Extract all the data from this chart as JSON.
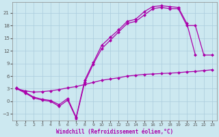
{
  "xlabel": "Windchill (Refroidissement éolien,°C)",
  "bg_color": "#cce8f0",
  "grid_color": "#aaccdd",
  "line_color": "#aa00aa",
  "xlim": [
    -0.5,
    23.5
  ],
  "ylim": [
    -4.5,
    23.5
  ],
  "yticks": [
    -3,
    0,
    3,
    6,
    9,
    12,
    15,
    18,
    21
  ],
  "xticks": [
    0,
    1,
    2,
    3,
    4,
    5,
    6,
    7,
    8,
    9,
    10,
    11,
    12,
    13,
    14,
    15,
    16,
    17,
    18,
    19,
    20,
    21,
    22,
    23
  ],
  "line1_x": [
    0,
    1,
    2,
    3,
    4,
    5,
    6,
    7,
    8,
    9,
    10,
    11,
    12,
    13,
    14,
    15,
    16,
    17,
    18,
    19,
    20,
    21
  ],
  "line1_y": [
    3.2,
    2.2,
    1.0,
    0.5,
    0.2,
    -0.8,
    0.7,
    -3.8,
    5.0,
    9.2,
    13.3,
    15.2,
    17.0,
    19.0,
    19.5,
    21.3,
    22.5,
    22.7,
    22.5,
    22.3,
    18.5,
    11.0
  ],
  "line2_x": [
    0,
    1,
    2,
    3,
    4,
    5,
    6,
    7,
    8,
    9,
    10,
    11,
    12,
    13,
    14,
    15,
    16,
    17,
    18,
    19,
    20,
    21,
    22,
    23
  ],
  "line2_y": [
    3.0,
    2.0,
    0.8,
    0.3,
    0.0,
    -1.2,
    0.3,
    -4.0,
    4.5,
    8.8,
    12.5,
    14.5,
    16.5,
    18.5,
    19.0,
    20.5,
    22.0,
    22.3,
    22.0,
    22.0,
    18.0,
    18.0,
    11.0,
    11.0
  ],
  "line3_x": [
    0,
    1,
    2,
    3,
    4,
    5,
    6,
    7,
    8,
    9,
    10,
    11,
    12,
    13,
    14,
    15,
    16,
    17,
    18,
    19,
    20,
    21,
    22,
    23
  ],
  "line3_y": [
    3.0,
    2.5,
    2.2,
    2.3,
    2.5,
    2.8,
    3.2,
    3.5,
    4.0,
    4.5,
    5.0,
    5.3,
    5.6,
    6.0,
    6.2,
    6.4,
    6.5,
    6.6,
    6.7,
    6.8,
    7.0,
    7.1,
    7.3,
    7.5
  ]
}
